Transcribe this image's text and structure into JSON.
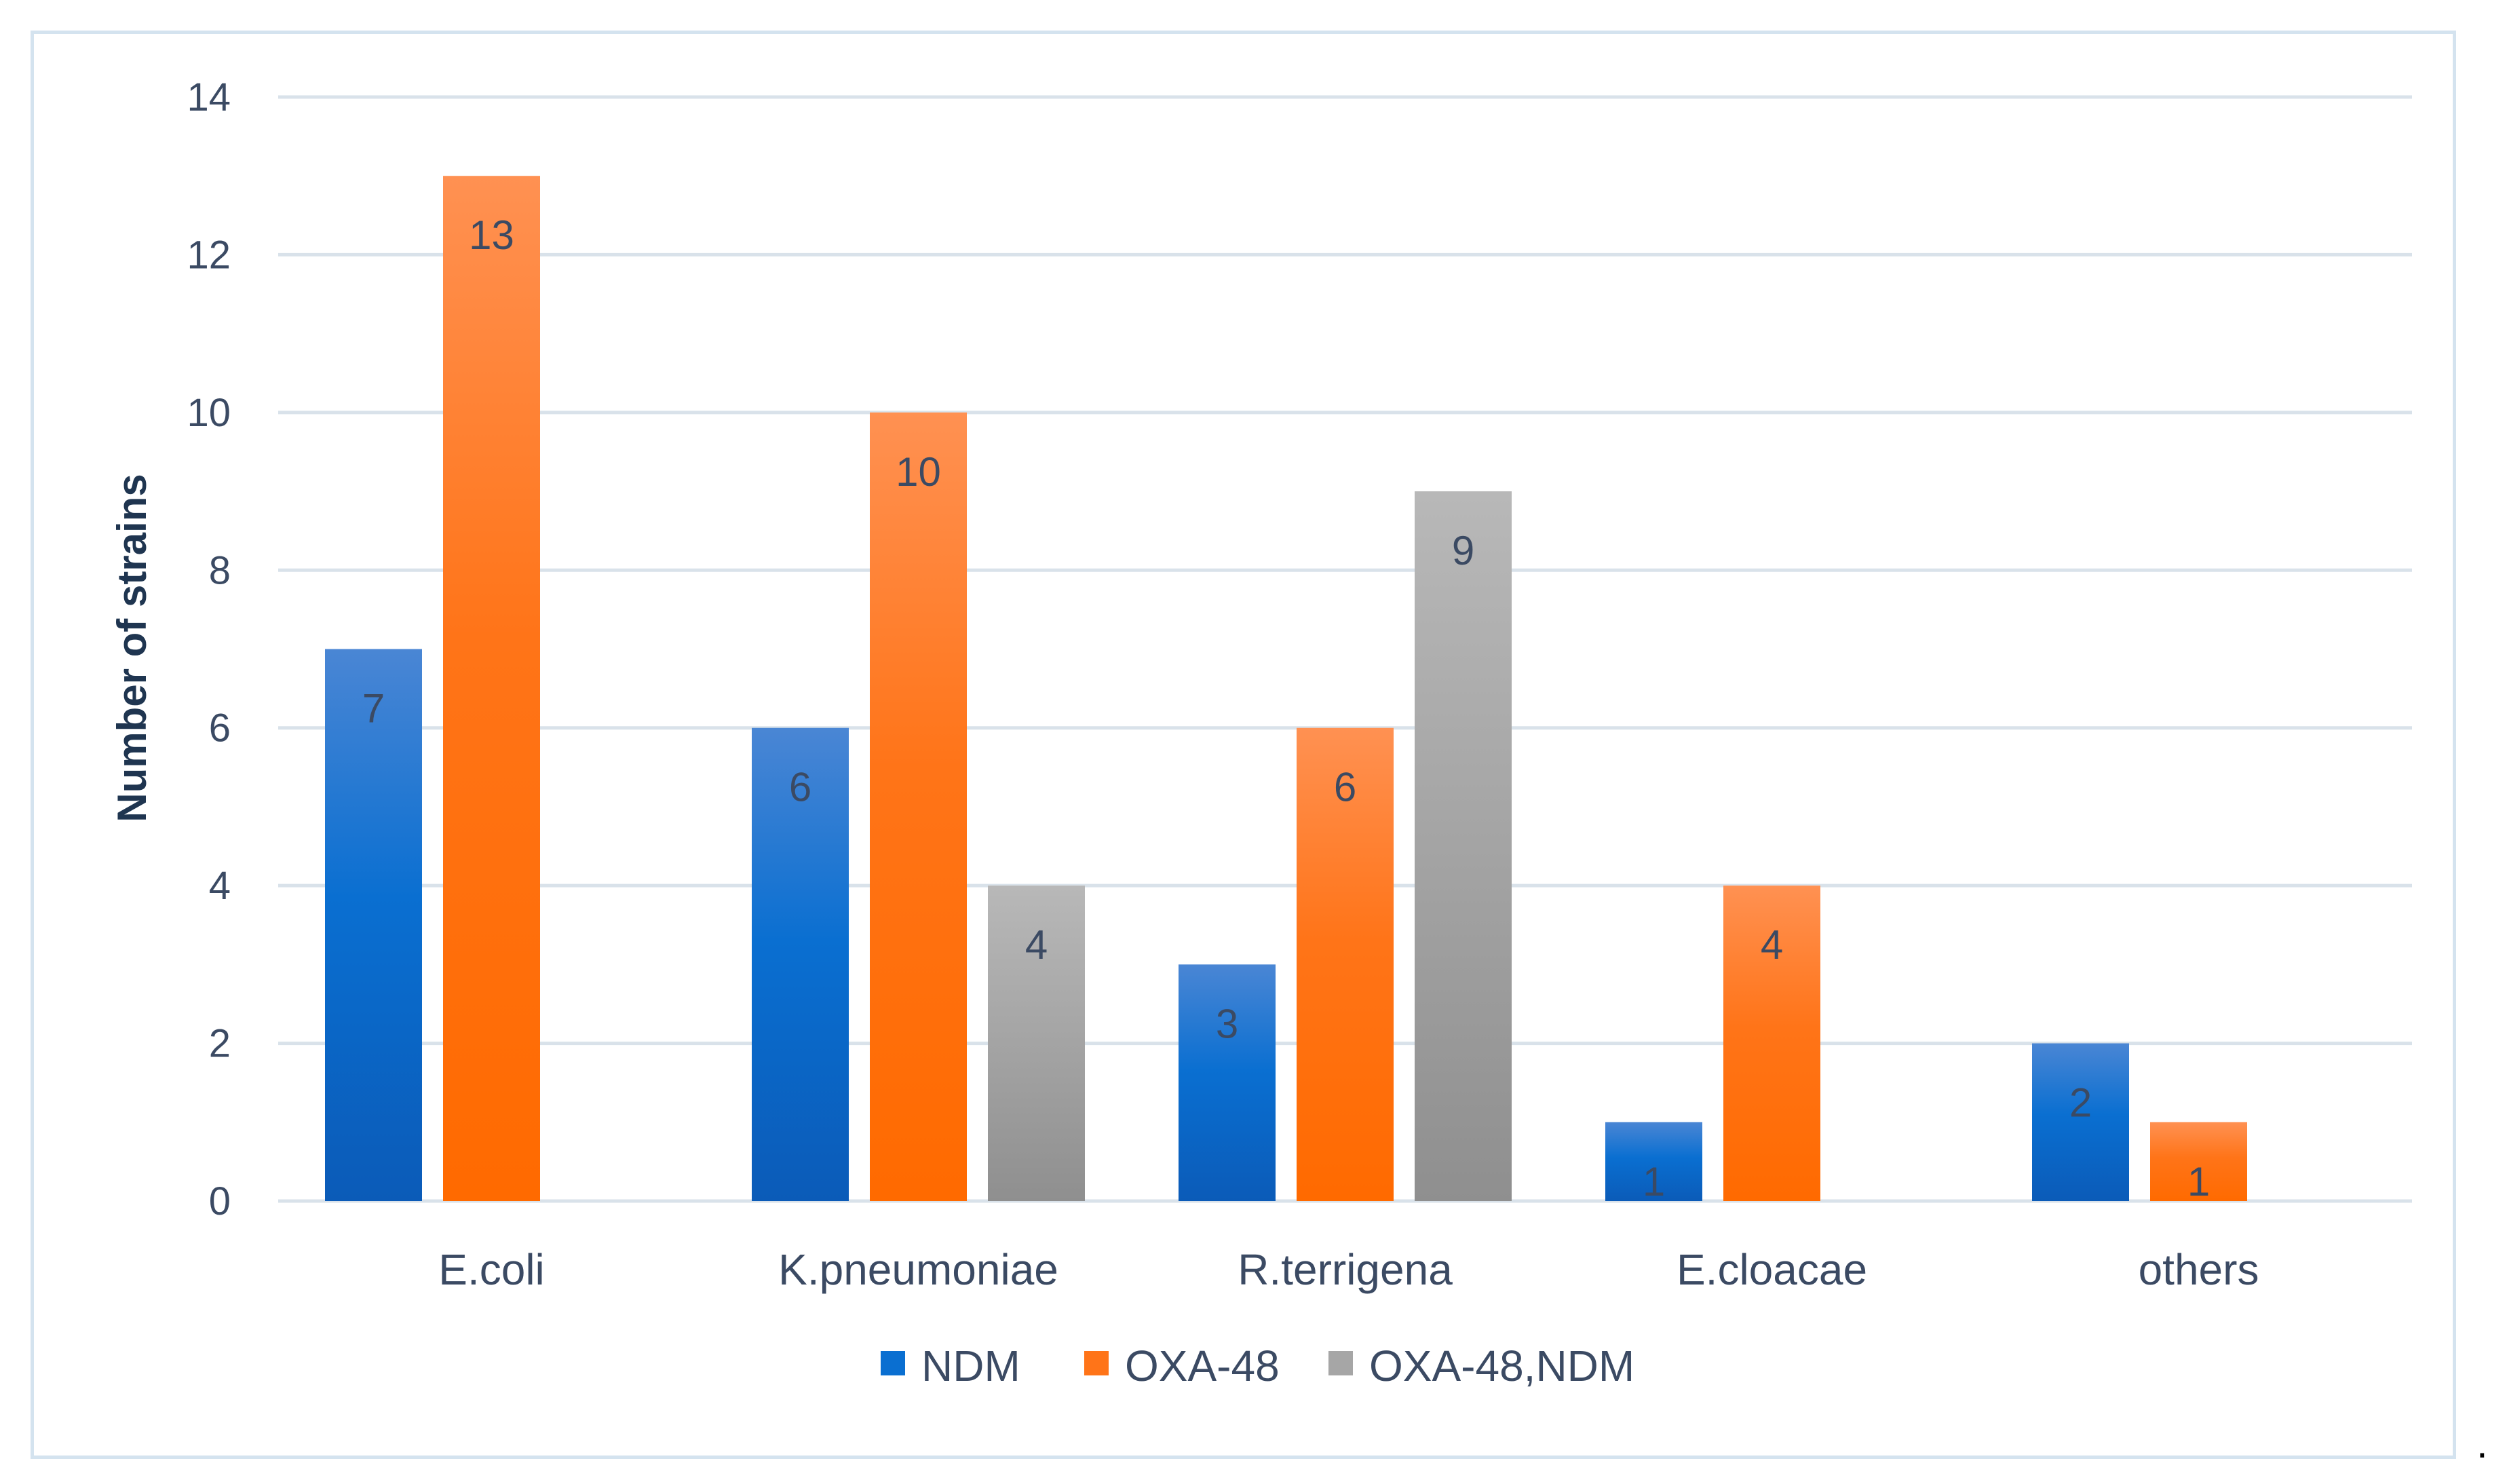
{
  "chart_data": {
    "type": "bar",
    "title": "",
    "xlabel": "",
    "ylabel": "Number of strains",
    "ylim": [
      0,
      14
    ],
    "yticks": [
      0,
      2,
      4,
      6,
      8,
      10,
      12,
      14
    ],
    "grid": true,
    "legend_position": "bottom",
    "categories": [
      "E.coli",
      "K.pneumoniae",
      "R.terrigena",
      "E.cloacae",
      "others"
    ],
    "series": [
      {
        "name": "NDM",
        "color_top": "#4a86d4",
        "color_mid": "#0a6fd1",
        "color_bottom": "#0b5bb8",
        "values": [
          7,
          6,
          3,
          1,
          2
        ]
      },
      {
        "name": "OXA-48",
        "color_top": "#ff9152",
        "color_mid": "#ff7418",
        "color_bottom": "#ff6a00",
        "values": [
          13,
          10,
          6,
          4,
          1
        ]
      },
      {
        "name": "OXA-48,NDM",
        "color_top": "#b8b8b8",
        "color_mid": "#a6a6a6",
        "color_bottom": "#8f8f8f",
        "values": [
          null,
          4,
          9,
          null,
          null
        ]
      }
    ]
  },
  "trailing_mark": ".",
  "colors": {
    "grid": "#d9e2ea",
    "text": "#3b4a63",
    "axis_title": "#1f3550",
    "frame": "#d4e3ef"
  }
}
